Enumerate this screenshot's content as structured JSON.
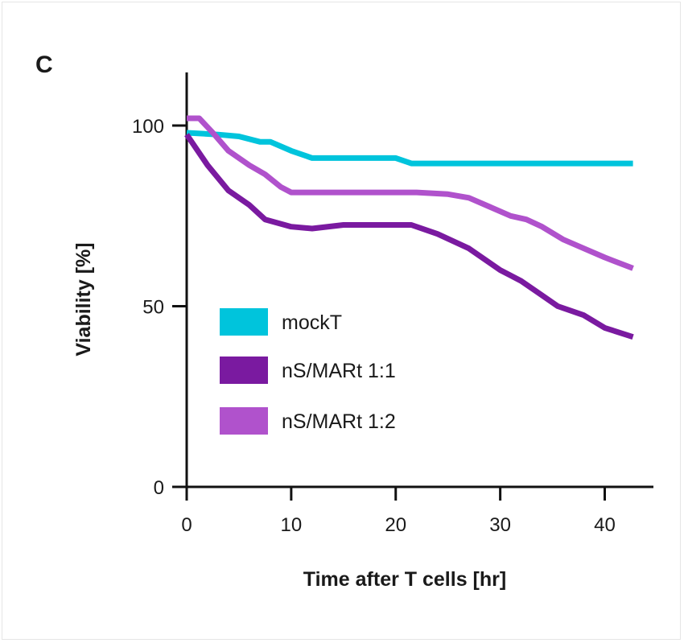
{
  "chart_data": {
    "type": "line",
    "panel_label": "C",
    "title": "",
    "xlabel": "Time after T cells [hr]",
    "ylabel": "Viability [%]",
    "xlim": [
      0,
      45
    ],
    "ylim": [
      0,
      115
    ],
    "x_ticks": [
      0,
      10,
      20,
      30,
      40
    ],
    "y_ticks": [
      0,
      50,
      100
    ],
    "grid": false,
    "legend_position": "lower-left",
    "series": [
      {
        "name": "mockT",
        "color": "#00c4dc",
        "points": [
          [
            0,
            98
          ],
          [
            3,
            97.5
          ],
          [
            5,
            97
          ],
          [
            7,
            95.5
          ],
          [
            8,
            95.5
          ],
          [
            10,
            93
          ],
          [
            12,
            91
          ],
          [
            15,
            91
          ],
          [
            20,
            91
          ],
          [
            21.5,
            89.5
          ],
          [
            25,
            89.5
          ],
          [
            30,
            89.5
          ],
          [
            35,
            89.5
          ],
          [
            40,
            89.5
          ],
          [
            42.7,
            89.5
          ]
        ]
      },
      {
        "name": "nS/MARt 1:1",
        "color": "#7a1aa0",
        "points": [
          [
            0,
            97.5
          ],
          [
            2,
            89
          ],
          [
            4,
            82
          ],
          [
            6,
            78
          ],
          [
            7.5,
            74
          ],
          [
            10,
            72
          ],
          [
            12,
            71.5
          ],
          [
            15,
            72.5
          ],
          [
            20,
            72.5
          ],
          [
            21.5,
            72.5
          ],
          [
            24,
            70
          ],
          [
            27,
            66
          ],
          [
            29,
            62
          ],
          [
            30,
            60
          ],
          [
            32,
            57
          ],
          [
            34,
            53
          ],
          [
            35.5,
            50
          ],
          [
            38,
            47.5
          ],
          [
            40,
            44
          ],
          [
            42.7,
            41.5
          ]
        ]
      },
      {
        "name": "nS/MARt 1:2",
        "color": "#b052cc",
        "points": [
          [
            0,
            102
          ],
          [
            1.2,
            102
          ],
          [
            2.5,
            98
          ],
          [
            4,
            93
          ],
          [
            6,
            89
          ],
          [
            7.5,
            86.5
          ],
          [
            9,
            83
          ],
          [
            10,
            81.5
          ],
          [
            12,
            81.5
          ],
          [
            15,
            81.5
          ],
          [
            20,
            81.5
          ],
          [
            22,
            81.5
          ],
          [
            25,
            81
          ],
          [
            27,
            80
          ],
          [
            29,
            77.5
          ],
          [
            31,
            75
          ],
          [
            32.5,
            74
          ],
          [
            34,
            72
          ],
          [
            36,
            68.5
          ],
          [
            38,
            66
          ],
          [
            40,
            63.5
          ],
          [
            42.7,
            60.5
          ]
        ]
      }
    ]
  }
}
